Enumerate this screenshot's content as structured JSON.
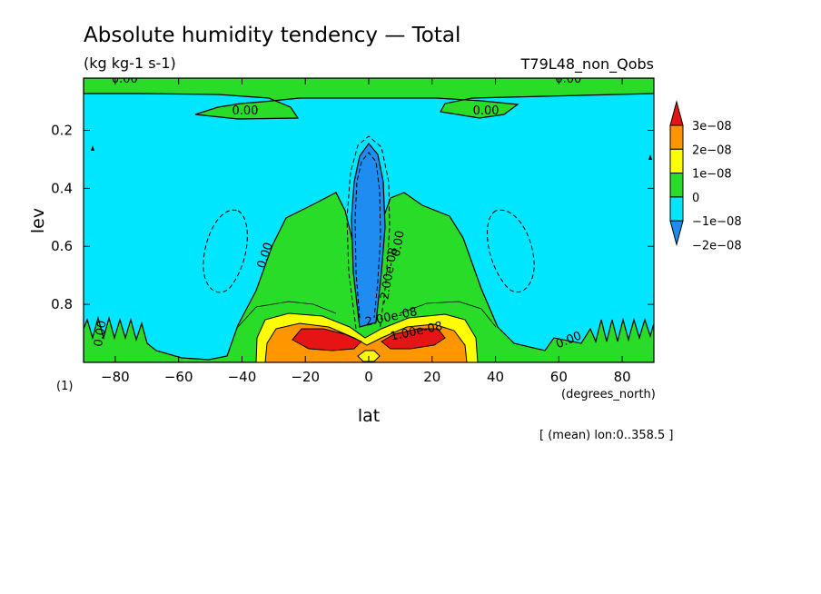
{
  "title": "Absolute humidity tendency — Total",
  "units": "(kg kg-1 s-1)",
  "run_name": "T79L48_non_Qobs",
  "page_marker": "(1)",
  "mean_note": "[ (mean) lon:0..358.5 ]",
  "chart_data": {
    "type": "heatmap",
    "title": "Absolute humidity tendency — Total",
    "xlabel": "lat",
    "xunits": "(degrees_north)",
    "ylabel": "lev",
    "xlim": [
      -90,
      90
    ],
    "ylim": [
      1.0,
      0.02
    ],
    "y_inverted": true,
    "x_ticks": [
      -80,
      -60,
      -40,
      -20,
      0,
      20,
      40,
      60,
      80
    ],
    "y_ticks": [
      0.2,
      0.4,
      0.6,
      0.8
    ],
    "x_tick_labels": [
      "−80",
      "−60",
      "−40",
      "−20",
      "0",
      "20",
      "40",
      "60",
      "80"
    ],
    "y_tick_labels": [
      "0.2",
      "0.4",
      "0.6",
      "0.8"
    ],
    "colorbar": {
      "levels": [
        -2e-08,
        -1e-08,
        0,
        1e-08,
        2e-08,
        3e-08
      ],
      "labels": [
        "−2e−08",
        "−1e−08",
        "0",
        "1e−08",
        "2e−08",
        "3e−08"
      ],
      "colors": [
        "#1e8cf0",
        "#00e6ff",
        "#28dc28",
        "#ffff00",
        "#ff9600",
        "#e61414"
      ]
    },
    "contour_labels": [
      {
        "text": "0.00",
        "x": -77,
        "y": 0.02
      },
      {
        "text": "0.00",
        "x": 63,
        "y": 0.02
      },
      {
        "text": "0.00",
        "x": -39,
        "y": 0.13
      },
      {
        "text": "0.00",
        "x": 37,
        "y": 0.13
      },
      {
        "text": "0.00",
        "x": -33,
        "y": 0.63
      },
      {
        "text": "0.00",
        "x": -85,
        "y": 0.9
      },
      {
        "text": "0.00",
        "x": 63,
        "y": 0.92
      },
      {
        "text": "-2.00e-08",
        "x": 6,
        "y": 0.7
      },
      {
        "text": "0.00",
        "x": 9,
        "y": 0.59
      },
      {
        "text": "1.00e-08",
        "x": 15,
        "y": 0.89
      },
      {
        "text": "2.00e-08",
        "x": 7,
        "y": 0.84
      }
    ],
    "regions": [
      {
        "name": "top-band",
        "value": 0
      },
      {
        "name": "background",
        "value": -1e-08
      },
      {
        "name": "low-level-mass",
        "value": 0
      },
      {
        "name": "equatorial-column",
        "value": -2e-08
      },
      {
        "name": "positive-core",
        "value": 2e-08
      },
      {
        "name": "max-core",
        "value": 3e-08
      }
    ]
  }
}
